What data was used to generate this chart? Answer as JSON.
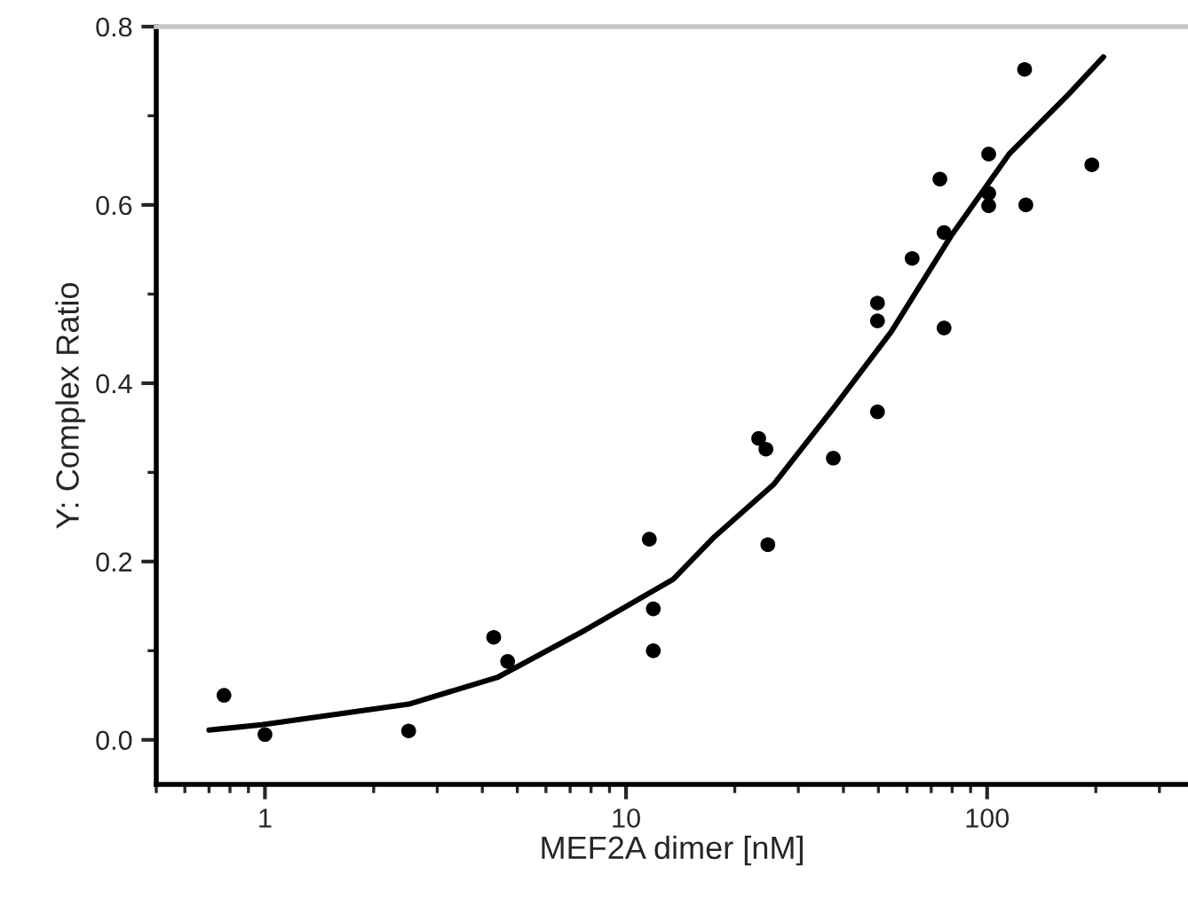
{
  "chart_data": {
    "type": "scatter",
    "xlabel": "MEF2A dimer [nM]",
    "ylabel": "Y: Complex Ratio",
    "log": "x",
    "xlim": [
      0.5,
      360
    ],
    "xticks": [
      1,
      10,
      100
    ],
    "ylim": [
      -0.05,
      0.8
    ],
    "yticks": [
      {
        "value": 0,
        "label": "0.0"
      },
      0.2,
      0.4,
      0.6,
      0.8
    ],
    "grid": false,
    "legend": false,
    "marker": "circle",
    "series": [
      {
        "color": "#000000",
        "x": [
          0.77,
          1.0,
          2.5,
          4.3,
          4.7,
          11.6,
          11.9,
          11.9,
          23.3,
          24.4,
          24.7,
          37.5,
          49.7,
          49.7,
          49.7,
          62,
          74,
          76,
          76,
          101,
          101,
          101,
          127,
          128,
          195
        ],
        "values": [
          0.05,
          0.006,
          0.01,
          0.115,
          0.088,
          0.225,
          0.147,
          0.1,
          0.338,
          0.326,
          0.219,
          0.316,
          0.49,
          0.47,
          0.368,
          0.54,
          0.629,
          0.569,
          0.462,
          0.657,
          0.613,
          0.599,
          0.752,
          0.6,
          0.645
        ]
      },
      {
        "type": "line",
        "color": "#000000",
        "line_style": "solid",
        "marker": "none",
        "x": [
          0.7,
          0.98,
          2.5,
          4.4,
          7.7,
          13.5,
          17.6,
          25.7,
          37.5,
          54.3,
          79.4,
          115,
          168,
          210
        ],
        "values": [
          0.011,
          0.017,
          0.04,
          0.07,
          0.123,
          0.18,
          0.228,
          0.287,
          0.372,
          0.458,
          0.565,
          0.657,
          0.724,
          0.766
        ]
      }
    ]
  }
}
